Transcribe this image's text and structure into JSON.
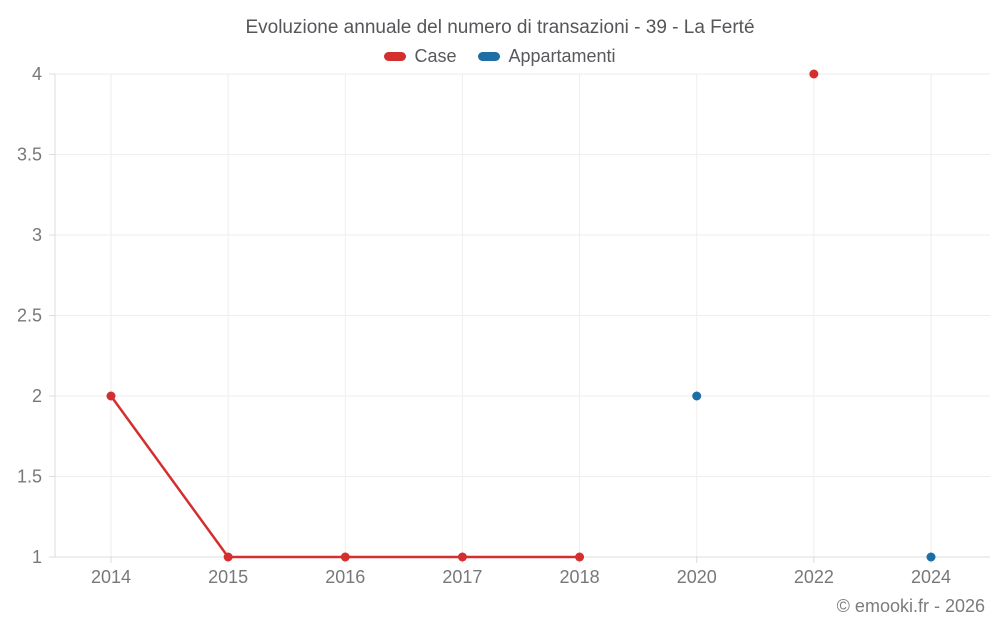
{
  "chart_data": {
    "type": "line",
    "title": "Evoluzione annuale del numero di transazioni - 39 - La Ferté",
    "categories": [
      "2014",
      "2015",
      "2016",
      "2017",
      "2018",
      "2020",
      "2022",
      "2024"
    ],
    "series": [
      {
        "name": "Case",
        "color": "#d32f2f",
        "values": [
          2,
          1,
          1,
          1,
          1,
          null,
          4,
          null
        ]
      },
      {
        "name": "Appartamenti",
        "color": "#1c6ea4",
        "values": [
          null,
          null,
          null,
          null,
          null,
          2,
          null,
          1
        ]
      }
    ],
    "xlabel": "",
    "ylabel": "",
    "ylim": [
      1,
      4
    ],
    "yticks": [
      1,
      1.5,
      2,
      2.5,
      3,
      3.5,
      4
    ],
    "grid": true,
    "legend_position": "top",
    "point_style": "circle",
    "gaps_not_connected": true,
    "footer": "© emooki.fr - 2026"
  }
}
